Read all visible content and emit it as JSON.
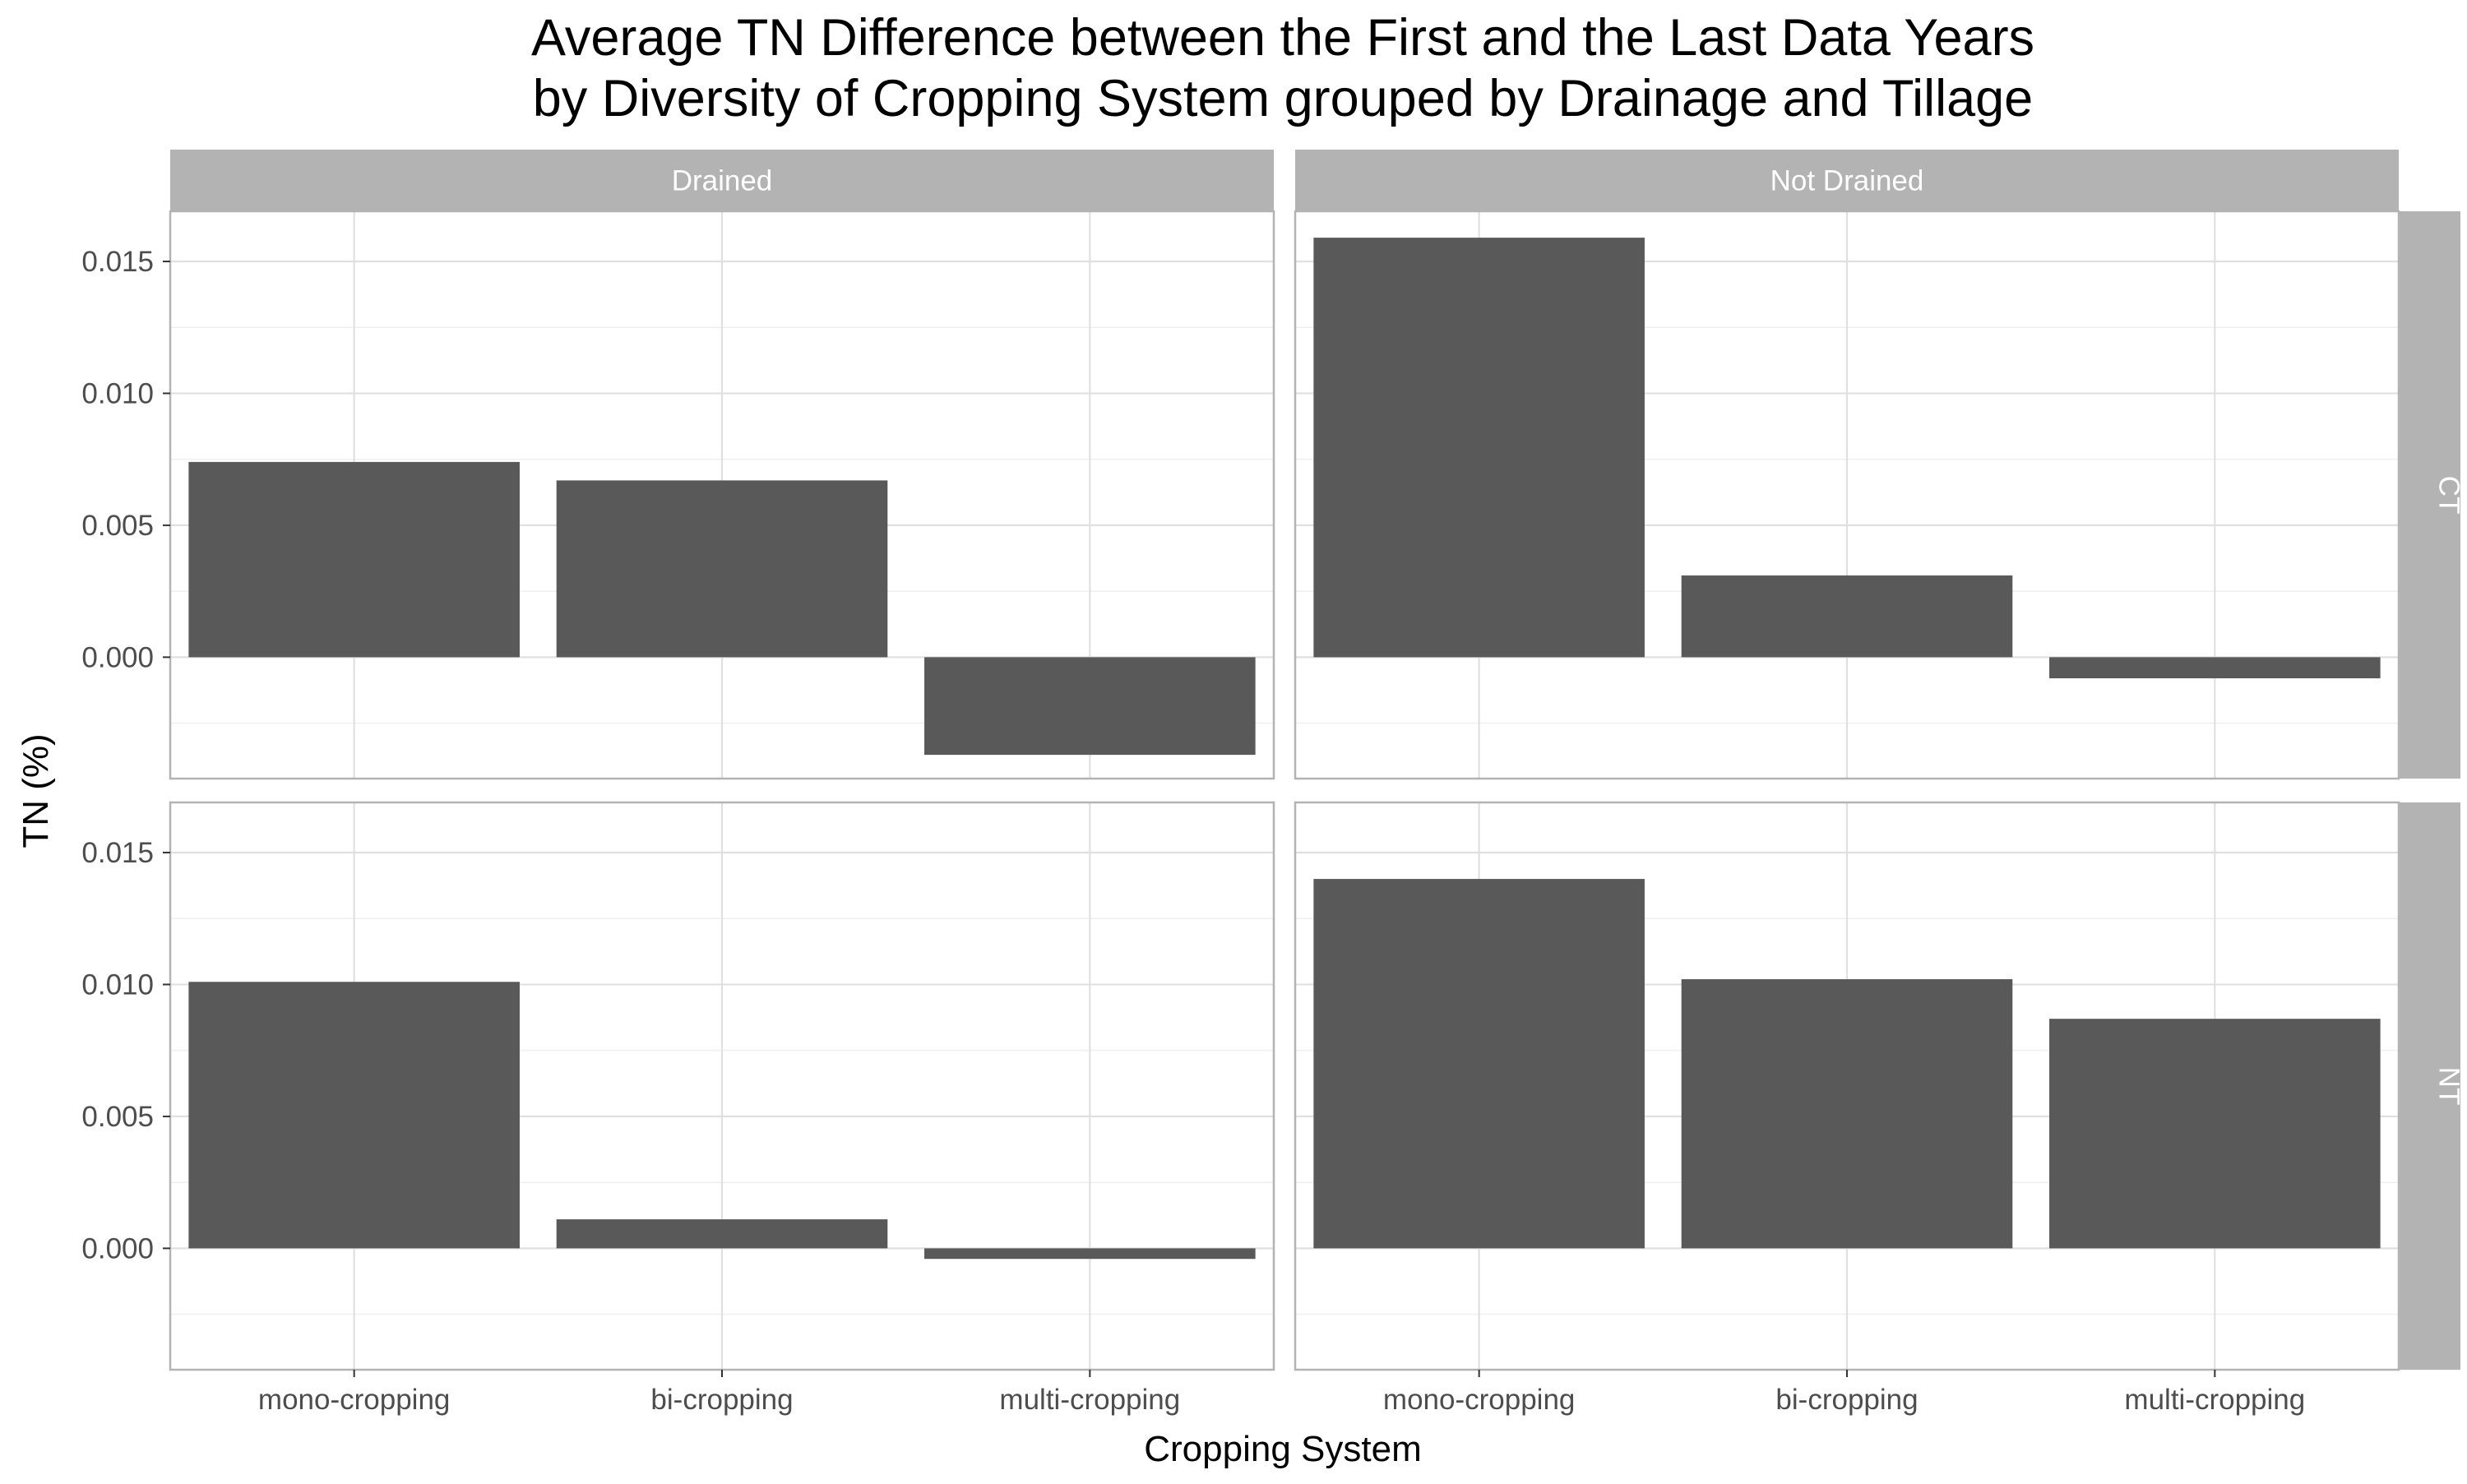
{
  "chart_data": {
    "type": "bar",
    "title": "Average TN Difference between the First and the Last Data Years",
    "subtitle": "by Diversity of Cropping System grouped by Drainage and Tillage",
    "xlabel": "Cropping System",
    "ylabel": "TN (%)",
    "categories": [
      "mono-cropping",
      "bi-cropping",
      "multi-cropping"
    ],
    "ylim": [
      -0.0046,
      0.0169
    ],
    "yticks": [
      0.0,
      0.005,
      0.01,
      0.015
    ],
    "ytick_labels": [
      "0.000",
      "0.005",
      "0.010",
      "0.015"
    ],
    "grid": true,
    "bar_color": "#595959",
    "strip_color": "#b3b3b3",
    "column_facets": [
      "Drained",
      "Not Drained"
    ],
    "row_facets": [
      "CT",
      "NT"
    ],
    "panels": [
      {
        "column": "Drained",
        "row": "CT",
        "values": [
          0.0074,
          0.0067,
          -0.0037
        ]
      },
      {
        "column": "Not Drained",
        "row": "CT",
        "values": [
          0.0159,
          0.0031,
          -0.0008
        ]
      },
      {
        "column": "Drained",
        "row": "NT",
        "values": [
          0.0101,
          0.0011,
          -0.0004
        ]
      },
      {
        "column": "Not Drained",
        "row": "NT",
        "values": [
          0.014,
          0.0102,
          0.0087
        ]
      }
    ]
  }
}
